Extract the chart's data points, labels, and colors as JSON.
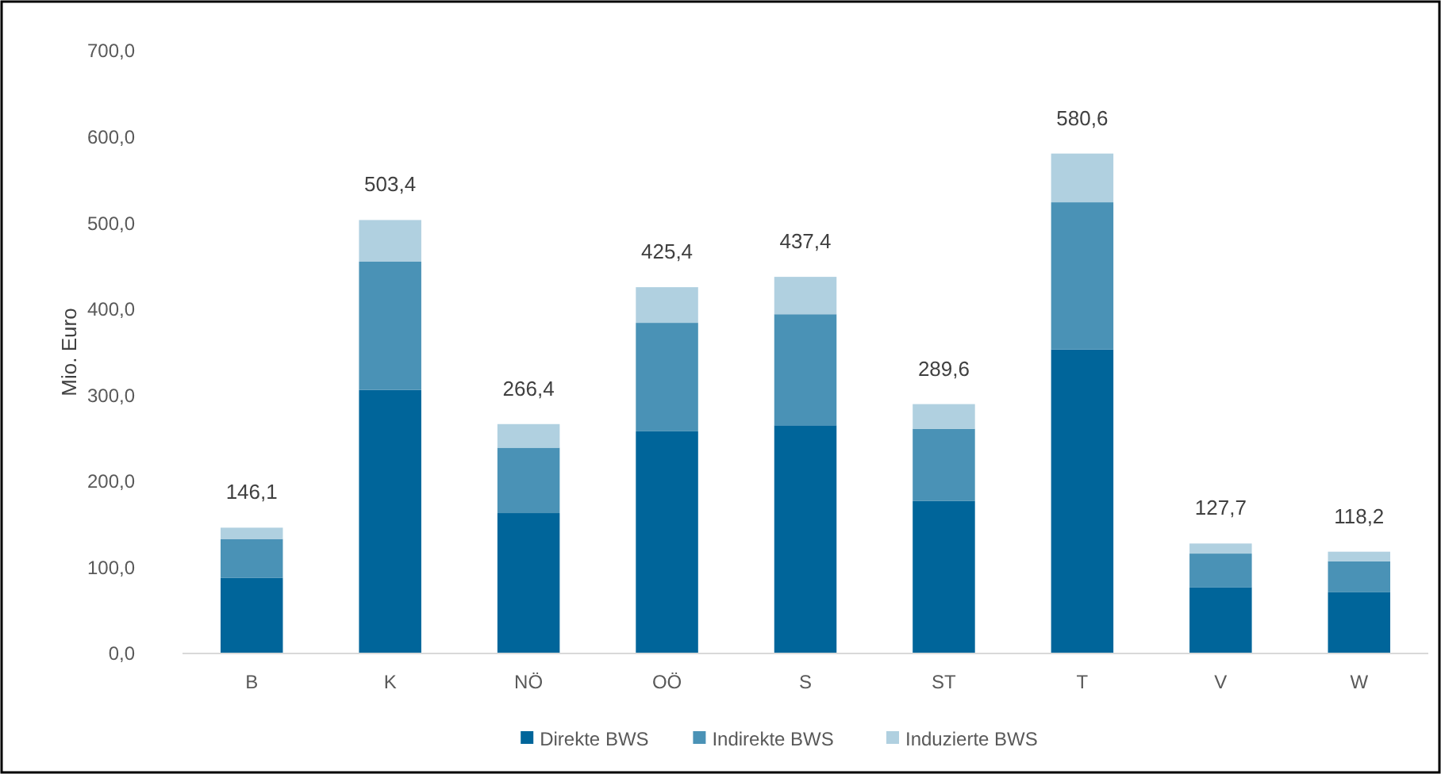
{
  "chart_data": {
    "type": "bar",
    "ylabel": "Mio. Euro",
    "categories": [
      "B",
      "K",
      "NÖ",
      "OÖ",
      "S",
      "ST",
      "T",
      "V",
      "W"
    ],
    "stacked": true,
    "series": [
      {
        "name": "Direkte BWS",
        "color": "#00659a",
        "values": [
          88,
          306,
          163,
          258,
          265,
          177,
          353,
          77,
          71
        ]
      },
      {
        "name": "Indirekte BWS",
        "color": "#4a92b6",
        "values": [
          45,
          149,
          76,
          126,
          129,
          84,
          171,
          39,
          36
        ]
      },
      {
        "name": "Induzierte BWS",
        "color": "#b0d0e0",
        "values": [
          13.1,
          48.4,
          27.4,
          41.4,
          43.4,
          28.6,
          56.6,
          11.7,
          11.2
        ]
      }
    ],
    "totals": [
      "146,1",
      "503,4",
      "266,4",
      "425,4",
      "437,4",
      "289,6",
      "580,6",
      "127,7",
      "118,2"
    ],
    "ylim": [
      0,
      700
    ],
    "yticks": [
      {
        "value": 0,
        "label": "0,0"
      },
      {
        "value": 100,
        "label": "100,0"
      },
      {
        "value": 200,
        "label": "200,0"
      },
      {
        "value": 300,
        "label": "300,0"
      },
      {
        "value": 400,
        "label": "400,0"
      },
      {
        "value": 500,
        "label": "500,0"
      },
      {
        "value": 600,
        "label": "600,0"
      },
      {
        "value": 700,
        "label": "700,0"
      }
    ],
    "grid": false,
    "legend": "bottom"
  }
}
